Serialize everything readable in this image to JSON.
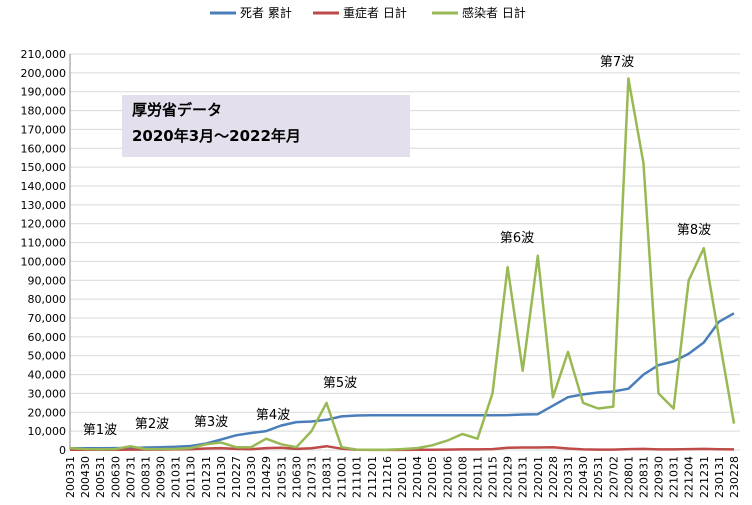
{
  "chart_data": {
    "type": "line",
    "categories": [
      "200331",
      "200430",
      "200531",
      "200630",
      "200731",
      "200831",
      "200930",
      "201031",
      "201130",
      "201231",
      "210130",
      "210227",
      "210330",
      "210429",
      "210531",
      "210630",
      "210731",
      "210831",
      "211001",
      "211101",
      "211201",
      "211216",
      "220101",
      "220104",
      "220105",
      "220106",
      "220108",
      "220111",
      "220115",
      "220129",
      "220131",
      "220201",
      "220228",
      "220331",
      "220430",
      "220531",
      "220702",
      "220801",
      "220831",
      "220930",
      "221031",
      "221204",
      "221231",
      "230131",
      "230228"
    ],
    "series": [
      {
        "name": "死者 累計",
        "color": "#4a7ebb",
        "values": [
          900,
          900,
          900,
          1000,
          1000,
          1300,
          1500,
          1700,
          2100,
          3400,
          5500,
          7800,
          9000,
          10000,
          13000,
          14800,
          15100,
          16000,
          17800,
          18300,
          18400,
          18400,
          18400,
          18400,
          18400,
          18400,
          18400,
          18400,
          18400,
          18500,
          18800,
          19000,
          23500,
          28000,
          29500,
          30500,
          31000,
          32500,
          40000,
          45000,
          47000,
          51000,
          57000,
          68000,
          72500
        ]
      },
      {
        "name": "重症者 日計",
        "color": "#be4b48",
        "values": [
          100,
          100,
          100,
          100,
          200,
          200,
          200,
          300,
          400,
          800,
          1000,
          600,
          400,
          1000,
          1200,
          600,
          900,
          2000,
          700,
          100,
          50,
          50,
          50,
          100,
          100,
          200,
          300,
          300,
          500,
          1200,
          1300,
          1300,
          1500,
          800,
          300,
          200,
          200,
          500,
          600,
          300,
          300,
          500,
          600,
          400,
          300
        ]
      },
      {
        "name": "感染者 日計",
        "color": "#98b954",
        "values": [
          1000,
          500,
          300,
          500,
          2000,
          500,
          500,
          600,
          1000,
          3000,
          4000,
          1500,
          1500,
          6000,
          3000,
          1500,
          10000,
          25000,
          1500,
          200,
          100,
          100,
          500,
          1000,
          2500,
          5000,
          8500,
          6000,
          30000,
          97000,
          42000,
          103000,
          28000,
          52000,
          25000,
          22000,
          23000,
          197000,
          152000,
          30000,
          22000,
          90000,
          107000,
          60000,
          14000
        ]
      }
    ],
    "ylim": [
      0,
      210000
    ],
    "yticks": [
      0,
      {
        "value": 10000,
        "label": "10,000"
      },
      {
        "value": 20000,
        "label": "20,000"
      },
      {
        "value": 30000,
        "label": "30,000"
      },
      {
        "value": 40000,
        "label": "40,000"
      },
      {
        "value": 50000,
        "label": "50,000"
      },
      {
        "value": 60000,
        "label": "60,000"
      },
      {
        "value": 70000,
        "label": "70,000"
      },
      {
        "value": 80000,
        "label": "80,000"
      },
      {
        "value": 90000,
        "label": "90,000"
      },
      {
        "value": 100000,
        "label": "100,000"
      },
      {
        "value": 110000,
        "label": "110,000"
      },
      {
        "value": 120000,
        "label": "120,000"
      },
      {
        "value": 130000,
        "label": "130,000"
      },
      {
        "value": 140000,
        "label": "140,000"
      },
      {
        "value": 150000,
        "label": "150,000"
      },
      {
        "value": 160000,
        "label": "160,000"
      },
      {
        "value": 170000,
        "label": "170,000"
      },
      {
        "value": 180000,
        "label": "180,000"
      },
      {
        "value": 190000,
        "label": "190,000"
      },
      {
        "value": 200000,
        "label": "200,000"
      },
      {
        "value": 210000,
        "label": "210,000"
      }
    ],
    "grid": true,
    "legend": "top",
    "note": [
      "厚労省データ",
      "2020年3月～2022年月"
    ],
    "annotations": [
      "第1波",
      "第2波",
      "第3波",
      "第4波",
      "第5波",
      "第6波",
      "第7波",
      "第8波"
    ]
  }
}
